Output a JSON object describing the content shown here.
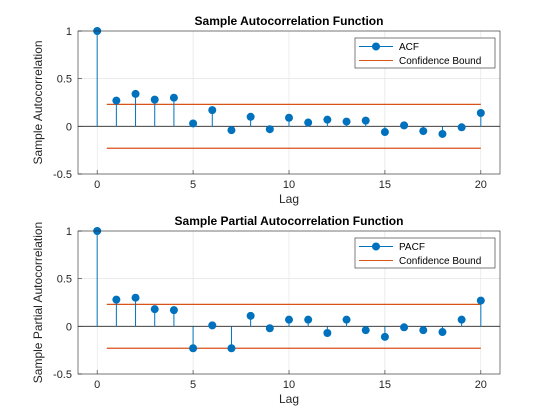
{
  "chart_data": [
    {
      "type": "stem",
      "title": "Sample Autocorrelation Function",
      "xlabel": "Lag",
      "ylabel": "Sample Autocorrelation",
      "xlim": [
        -1,
        21
      ],
      "ylim": [
        -0.5,
        1
      ],
      "xticks": [
        0,
        5,
        10,
        15,
        20
      ],
      "yticks": [
        -0.5,
        0,
        0.5,
        1
      ],
      "ytick_labels": [
        "-0.5",
        "0",
        "0.5",
        "1"
      ],
      "grid": true,
      "legend_position": "top-right",
      "series": [
        {
          "name": "ACF",
          "color": "#0072BD",
          "x": [
            0,
            1,
            2,
            3,
            4,
            5,
            6,
            7,
            8,
            9,
            10,
            11,
            12,
            13,
            14,
            15,
            16,
            17,
            18,
            19,
            20
          ],
          "values": [
            1.0,
            0.27,
            0.34,
            0.28,
            0.3,
            0.03,
            0.17,
            -0.04,
            0.1,
            -0.03,
            0.09,
            0.04,
            0.07,
            0.05,
            0.06,
            -0.06,
            0.01,
            -0.05,
            -0.08,
            -0.01,
            0.14
          ]
        }
      ],
      "bounds": {
        "name": "Confidence Bound",
        "color": "#D95319",
        "upper": 0.23,
        "lower": -0.23,
        "x_range": [
          0.5,
          20
        ]
      }
    },
    {
      "type": "stem",
      "title": "Sample Partial Autocorrelation Function",
      "xlabel": "Lag",
      "ylabel": "Sample Partial Autocorrelation",
      "xlim": [
        -1,
        21
      ],
      "ylim": [
        -0.5,
        1
      ],
      "xticks": [
        0,
        5,
        10,
        15,
        20
      ],
      "yticks": [
        -0.5,
        0,
        0.5,
        1
      ],
      "ytick_labels": [
        "-0.5",
        "0",
        "0.5",
        "1"
      ],
      "grid": true,
      "legend_position": "top-right",
      "series": [
        {
          "name": "PACF",
          "color": "#0072BD",
          "x": [
            0,
            1,
            2,
            3,
            4,
            5,
            6,
            7,
            8,
            9,
            10,
            11,
            12,
            13,
            14,
            15,
            16,
            17,
            18,
            19,
            20
          ],
          "values": [
            1.0,
            0.28,
            0.3,
            0.18,
            0.17,
            -0.23,
            0.01,
            -0.23,
            0.11,
            -0.02,
            0.07,
            0.07,
            -0.07,
            0.07,
            -0.04,
            -0.11,
            -0.01,
            -0.04,
            -0.06,
            0.07,
            0.27
          ]
        }
      ],
      "bounds": {
        "name": "Confidence Bound",
        "color": "#D95319",
        "upper": 0.23,
        "lower": -0.23,
        "x_range": [
          0.5,
          20
        ]
      }
    }
  ]
}
